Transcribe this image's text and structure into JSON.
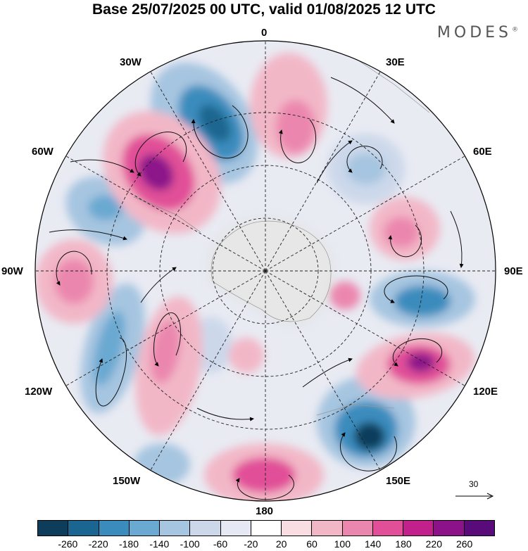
{
  "title": "Base 25/07/2025 00 UTC, valid 01/08/2025 12 UTC",
  "brand": "MODES",
  "brand_mark": "®",
  "longitude_labels": {
    "top": "0",
    "e30": "30E",
    "e60": "60E",
    "e90": "90E",
    "e120": "120E",
    "e150": "150E",
    "bottom": "180",
    "w150": "150W",
    "w120": "120W",
    "w90": "90W",
    "w60": "60W",
    "w30": "30W"
  },
  "vector_scale": {
    "value": "30"
  },
  "colorbar": {
    "colors": [
      "#0e3d5c",
      "#1b6690",
      "#3a8cbd",
      "#6aa9d2",
      "#a6c5e0",
      "#ccd8ea",
      "#e6e9f3",
      "#ffffff",
      "#f8dde3",
      "#f2b7c7",
      "#eb87ae",
      "#e14f98",
      "#c2208a",
      "#8c128a",
      "#5a0b7a"
    ],
    "ticks": [
      "-260",
      "-220",
      "-180",
      "-140",
      "-100",
      "-60",
      "-20",
      "20",
      "60",
      "100",
      "140",
      "180",
      "220",
      "260"
    ]
  }
}
